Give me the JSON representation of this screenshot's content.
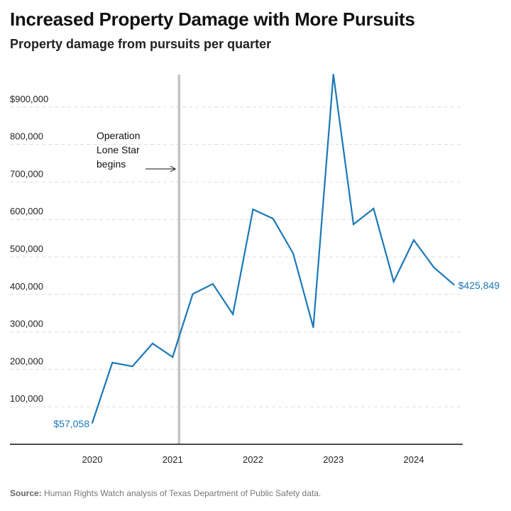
{
  "title": "Increased Property Damage with More Pursuits",
  "subtitle": "Property damage from pursuits per quarter",
  "source_label": "Source:",
  "source_text": "Human Rights Watch analysis of Texas Department of Public Safety data.",
  "chart_data": {
    "type": "line",
    "title": "Increased Property Damage with More Pursuits",
    "subtitle": "Property damage from pursuits per quarter",
    "xlabel": "",
    "ylabel": "",
    "x_ticks": [
      2020,
      2021,
      2022,
      2023,
      2024
    ],
    "y_ticks": [
      100000,
      200000,
      300000,
      400000,
      500000,
      600000,
      700000,
      800000,
      900000
    ],
    "y_tick_labels": [
      "100,000",
      "200,000",
      "300,000",
      "400,000",
      "500,000",
      "600,000",
      "700,000",
      "800,000",
      "$900,000"
    ],
    "ylim": [
      0,
      990000
    ],
    "grid": "horizontal dashed",
    "line_color": "#1a78b8",
    "series": [
      {
        "x": [
          2020.0,
          2020.25,
          2020.5,
          2020.75,
          2021.0,
          2021.25,
          2021.5,
          2021.75,
          2022.0,
          2022.25,
          2022.5,
          2022.75,
          2023.0,
          2023.25,
          2023.5,
          2023.75,
          2024.0,
          2024.25,
          2024.5
        ],
        "values": [
          57058,
          218000,
          208000,
          269000,
          233000,
          401000,
          428000,
          347000,
          627000,
          602000,
          509000,
          312000,
          987000,
          587000,
          629000,
          434000,
          545000,
          472000,
          425849
        ]
      }
    ],
    "endpoint_labels": {
      "first": "$57,058",
      "last": "$425,849"
    },
    "annotation": {
      "x": 2021.08,
      "text_lines": [
        "Operation",
        "Lone Star",
        "begins"
      ],
      "line_color": "#c4c4c4"
    }
  }
}
